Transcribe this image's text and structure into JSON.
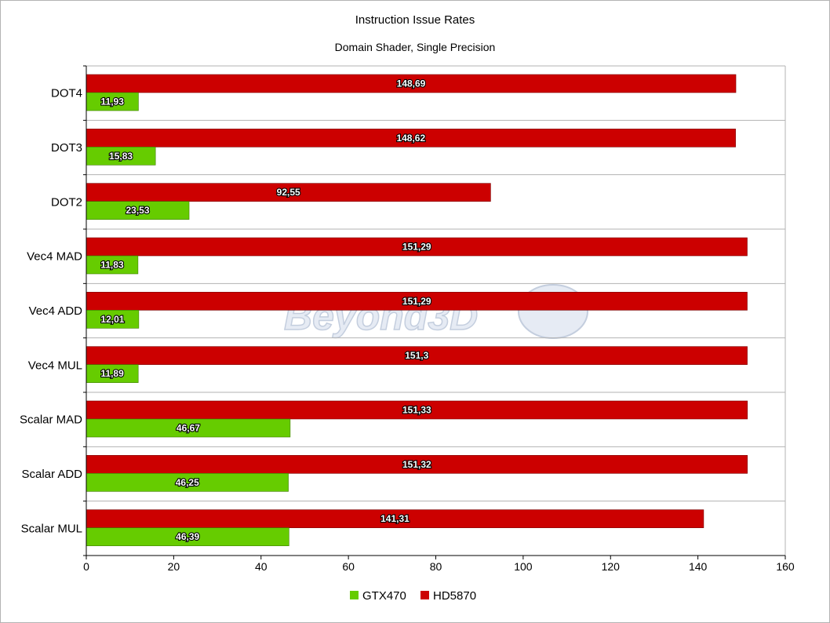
{
  "chart_data": {
    "type": "bar",
    "orientation": "horizontal",
    "title": "Instruction Issue Rates",
    "subtitle": "Domain Shader, Single Precision",
    "categories": [
      "DOT4",
      "DOT3",
      "DOT2",
      "Vec4 MAD",
      "Vec4 ADD",
      "Vec4 MUL",
      "Scalar MAD",
      "Scalar ADD",
      "Scalar MUL"
    ],
    "series": [
      {
        "name": "GTX470",
        "color": "#66cc00",
        "values": [
          11.93,
          15.83,
          23.53,
          11.83,
          12.01,
          11.89,
          46.67,
          46.25,
          46.39
        ],
        "labels": [
          "11,93",
          "15,83",
          "23,53",
          "11,83",
          "12,01",
          "11,89",
          "46,67",
          "46,25",
          "46,39"
        ]
      },
      {
        "name": "HD5870",
        "color": "#cc0000",
        "values": [
          148.69,
          148.62,
          92.55,
          151.29,
          151.29,
          151.3,
          151.33,
          151.32,
          141.31
        ],
        "labels": [
          "148,69",
          "148,62",
          "92,55",
          "151,29",
          "151,29",
          "151,3",
          "151,33",
          "151,32",
          "141,31"
        ]
      }
    ],
    "xlim": [
      0,
      160
    ],
    "xticks": [
      0,
      20,
      40,
      60,
      80,
      100,
      120,
      140,
      160
    ],
    "xtick_labels": [
      "0",
      "20",
      "40",
      "60",
      "80",
      "100",
      "120",
      "140",
      "160"
    ],
    "grid": true,
    "legend_position": "bottom",
    "watermark": "Beyond3D"
  }
}
